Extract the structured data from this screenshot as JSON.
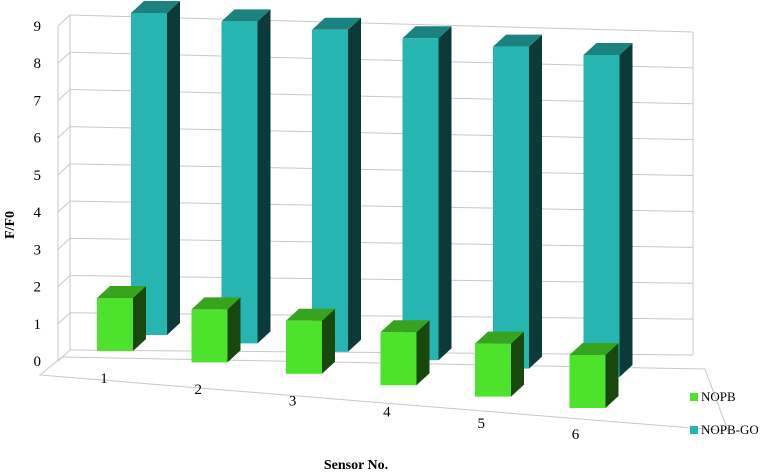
{
  "chart_data": {
    "type": "bar",
    "style": "3d-columns",
    "title": "",
    "xlabel": "Sensor No.",
    "ylabel": "F/F0",
    "ylim": [
      0,
      9
    ],
    "y_ticks": [
      "0",
      "1",
      "2",
      "3",
      "4",
      "5",
      "6",
      "7",
      "8",
      "9"
    ],
    "categories": [
      "1",
      "2",
      "3",
      "4",
      "5",
      "6"
    ],
    "grid": true,
    "legend_position": "bottom-right",
    "series": [
      {
        "name": "NOPB",
        "color": "#4de22b",
        "values": [
          1.4,
          1.4,
          1.4,
          1.4,
          1.4,
          1.4
        ]
      },
      {
        "name": "NOPB-GO",
        "color": "#26b5b0",
        "values": [
          9.2,
          9.2,
          9.2,
          9.2,
          9.2,
          9.2
        ]
      }
    ]
  }
}
